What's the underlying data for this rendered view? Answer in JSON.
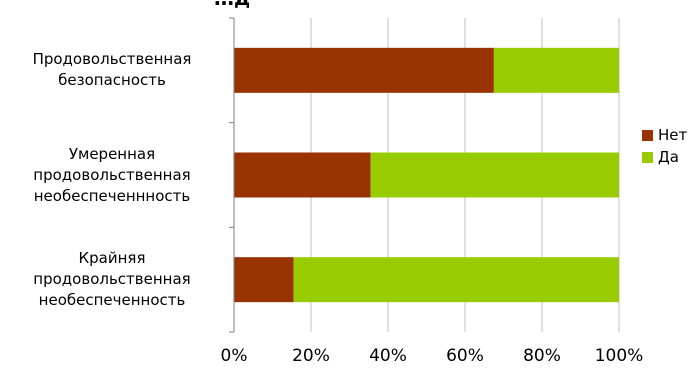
{
  "chart_data": {
    "type": "bar",
    "orientation": "horizontal",
    "stacked": true,
    "title": "…д",
    "categories": [
      [
        "Продовольственная",
        "безопасность"
      ],
      [
        "Умеренная",
        "продовольственная",
        "необеспеченнность"
      ],
      [
        "Крайняя",
        "продовольственная",
        "необеспеченность"
      ]
    ],
    "series": [
      {
        "name": "Нет",
        "color": "#993300",
        "values": [
          0.675,
          0.355,
          0.155
        ]
      },
      {
        "name": "Да",
        "color": "#99cc00",
        "values": [
          0.325,
          0.645,
          0.845
        ]
      }
    ],
    "xlim": [
      0,
      1
    ],
    "xticks": [
      "0%",
      "20%",
      "40%",
      "60%",
      "80%",
      "100%"
    ],
    "grid": true,
    "legend_position": "right"
  }
}
